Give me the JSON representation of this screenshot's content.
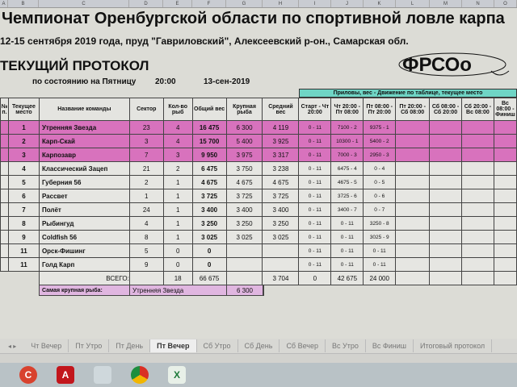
{
  "columns": [
    "A",
    "B",
    "C",
    "D",
    "E",
    "F",
    "G",
    "H",
    "I",
    "J",
    "K",
    "L",
    "M",
    "N",
    "O"
  ],
  "title": "Чемпионат Оренбургской области по спортивной ловле карпа",
  "subtitle": "12-15 сентября 2019 года, пруд \"Гавриловский\", Алексеевский р-он., Самарская обл.",
  "protocol": "ТЕКУЩИЙ ПРОТОКОЛ",
  "state": {
    "label": "по состоянию на Пятницу",
    "time": "20:00",
    "date": "13-сен-2019"
  },
  "logo": "ФРСОо",
  "band": "Приловы, вес - Движение по таблице, текущее место",
  "headers": [
    "№ п.",
    "Текущее место",
    "Название команды",
    "Сектор",
    "Кол-во рыб",
    "Общий вес",
    "Крупная рыба",
    "Средний вес",
    "Старт - Чт 20:00",
    "Чт 20:00 - Пт 08:00",
    "Пт 08:00 - Пт 20:00",
    "Пт 20:00 - Сб 08:00",
    "Сб 08:00 - Сб 20:00",
    "Сб 20:00 - Вс 08:00",
    "Вс 08:00 - Финиш"
  ],
  "rows": [
    [
      "",
      "1",
      "Утренняя Звезда",
      "23",
      "4",
      "16 475",
      "6 300",
      "4 119",
      "0 - 11",
      "7100 - 2",
      "9375 - 1",
      "",
      "",
      "",
      ""
    ],
    [
      "",
      "2",
      "Карп-Скай",
      "3",
      "4",
      "15 700",
      "5 400",
      "3 925",
      "0 - 11",
      "10300 - 1",
      "5400 - 2",
      "",
      "",
      "",
      ""
    ],
    [
      "",
      "3",
      "Карпозавр",
      "7",
      "3",
      "9 950",
      "3 975",
      "3 317",
      "0 - 11",
      "7000 - 3",
      "2950 - 3",
      "",
      "",
      "",
      ""
    ],
    [
      "",
      "4",
      "Классический Зацеп",
      "21",
      "2",
      "6 475",
      "3 750",
      "3 238",
      "0 - 11",
      "6475 - 4",
      "0 - 4",
      "",
      "",
      "",
      ""
    ],
    [
      "",
      "5",
      "Губерния 56",
      "2",
      "1",
      "4 675",
      "4 675",
      "4 675",
      "0 - 11",
      "4675 - 5",
      "0 - 5",
      "",
      "",
      "",
      ""
    ],
    [
      "",
      "6",
      "Рассвет",
      "1",
      "1",
      "3 725",
      "3 725",
      "3 725",
      "0 - 11",
      "3725 - 6",
      "0 - 6",
      "",
      "",
      "",
      ""
    ],
    [
      "",
      "7",
      "Полёт",
      "24",
      "1",
      "3 400",
      "3 400",
      "3 400",
      "0 - 11",
      "3400 - 7",
      "0 - 7",
      "",
      "",
      "",
      ""
    ],
    [
      "",
      "8",
      "Рыбингуд",
      "4",
      "1",
      "3 250",
      "3 250",
      "3 250",
      "0 - 11",
      "0 - 11",
      "3250 - 8",
      "",
      "",
      "",
      ""
    ],
    [
      "",
      "9",
      "Coldfish 56",
      "8",
      "1",
      "3 025",
      "3 025",
      "3 025",
      "0 - 11",
      "0 - 11",
      "3025 - 9",
      "",
      "",
      "",
      ""
    ],
    [
      "",
      "11",
      "Орск-Фишинг",
      "5",
      "0",
      "0",
      "",
      "",
      "0 - 11",
      "0 - 11",
      "0 - 11",
      "",
      "",
      "",
      ""
    ],
    [
      "",
      "11",
      "Голд Карп",
      "9",
      "0",
      "0",
      "",
      "",
      "0 - 11",
      "0 - 11",
      "0 - 11",
      "",
      "",
      "",
      ""
    ]
  ],
  "total": {
    "label": "ВСЕГО:",
    "fish": "18",
    "weight": "66 675",
    "avg": "3 704",
    "start": "0",
    "thu": "42 675",
    "fri": "24 000"
  },
  "biggest": {
    "label": "Самая крупная рыба:",
    "team": "Утренняя Звезда",
    "weight": "6 300"
  },
  "sheet_tabs": [
    "Чт Вечер",
    "Пт Утро",
    "Пт День",
    "Пт Вечер",
    "Сб Утро",
    "Сб День",
    "Сб Вечер",
    "Вс Утро",
    "Вс Финиш",
    "Итоговый протокол"
  ],
  "active_tab": "Пт Вечер",
  "colors": {
    "highlight": "#d872bd",
    "band": "#6fd5c5"
  }
}
